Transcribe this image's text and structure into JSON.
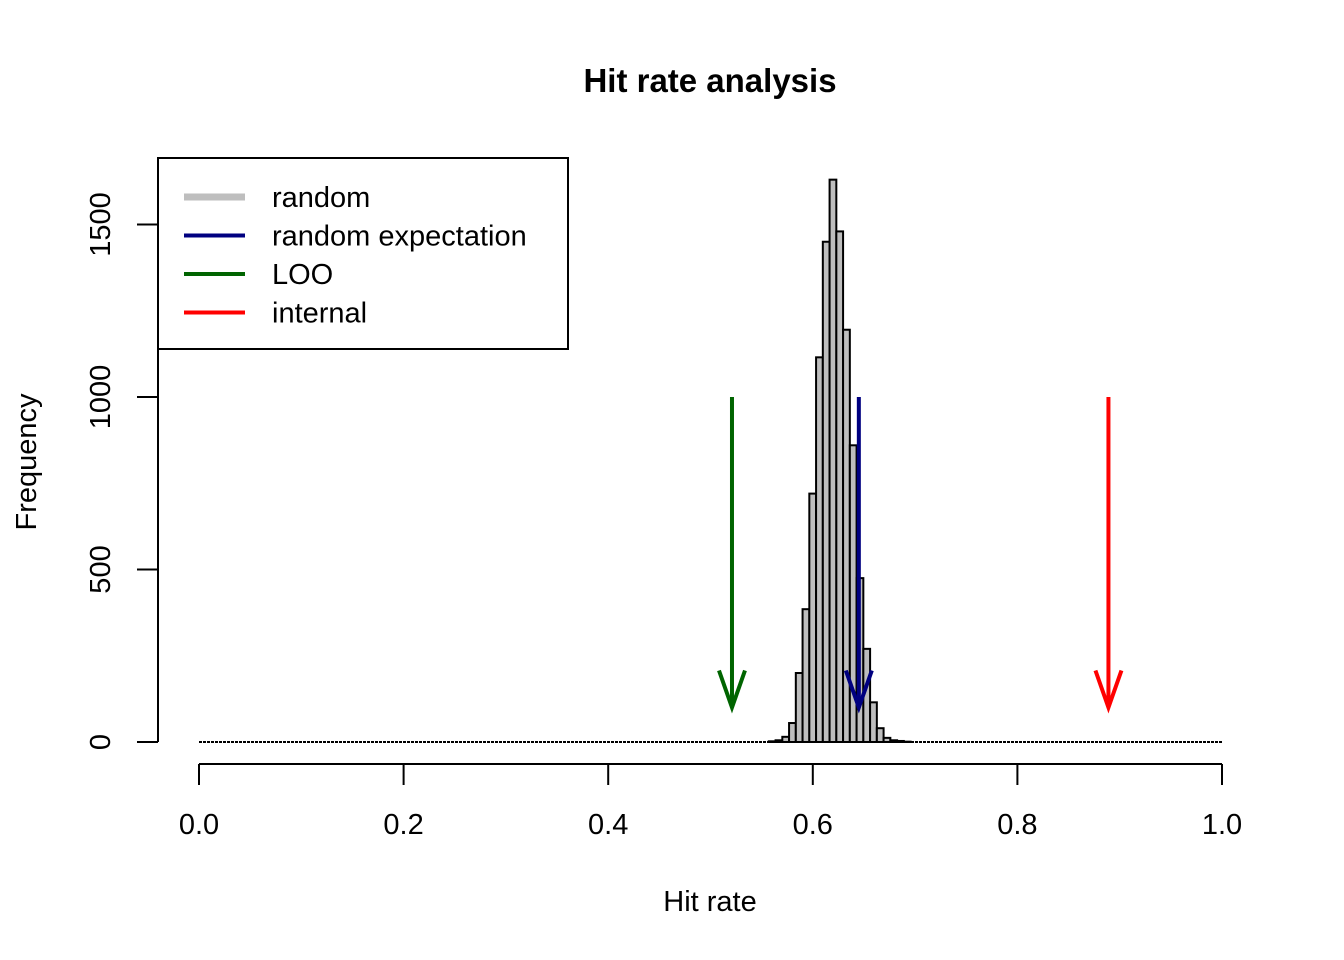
{
  "chart_data": {
    "type": "bar",
    "title": "Hit rate analysis",
    "xlabel": "Hit rate",
    "ylabel": "Frequency",
    "xlim": [
      0,
      1
    ],
    "ylim": [
      0,
      1650
    ],
    "x_ticks": [
      "0.0",
      "0.2",
      "0.4",
      "0.6",
      "0.8",
      "1.0"
    ],
    "y_ticks": [
      "0",
      "500",
      "1000",
      "1500"
    ],
    "grid": false,
    "legend_position": "top-left",
    "legend": [
      {
        "label": "random",
        "color": "#bebebe"
      },
      {
        "label": "random expectation",
        "color": "#000080"
      },
      {
        "label": "LOO",
        "color": "#006400"
      },
      {
        "label": "internal",
        "color": "#ff0000"
      }
    ],
    "histogram": {
      "bin_width": 0.0066,
      "bin_starts": [
        0.557,
        0.5636,
        0.5702,
        0.5768,
        0.5834,
        0.59,
        0.5966,
        0.6032,
        0.6098,
        0.6164,
        0.623,
        0.6296,
        0.6362,
        0.6428,
        0.6494,
        0.656,
        0.6626,
        0.6692,
        0.6758,
        0.6824,
        0.689,
        0.6956,
        0.7022,
        0.7088,
        0.7154,
        0.722,
        0.7286,
        0.7352,
        0.7418
      ],
      "counts": [
        2,
        5,
        15,
        55,
        200,
        385,
        720,
        1115,
        1450,
        1630,
        1480,
        1195,
        860,
        475,
        270,
        115,
        40,
        12,
        5,
        3,
        1,
        0,
        0,
        0,
        0,
        0,
        0,
        0,
        0
      ],
      "fill": "#bebebe"
    },
    "arrows": [
      {
        "name": "LOO",
        "x": 0.521,
        "from_y": 1000,
        "to_y": 100,
        "color": "#006400"
      },
      {
        "name": "random expectation",
        "x": 0.645,
        "from_y": 1000,
        "to_y": 100,
        "color": "#000080"
      },
      {
        "name": "internal",
        "x": 0.889,
        "from_y": 1000,
        "to_y": 100,
        "color": "#ff0000"
      }
    ]
  }
}
